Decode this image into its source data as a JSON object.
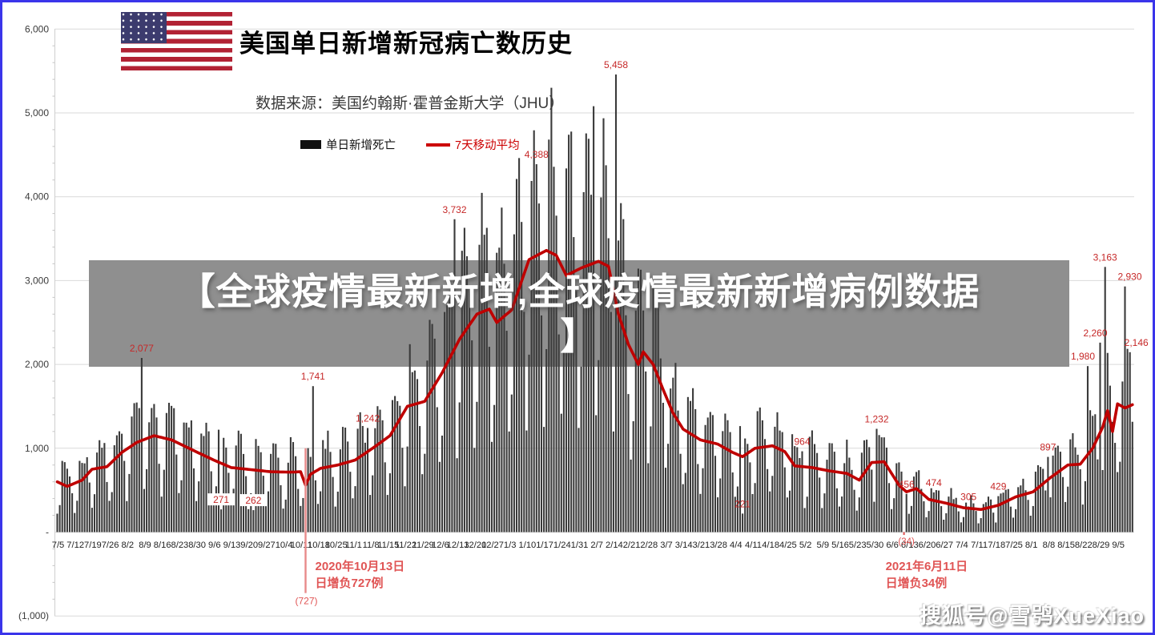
{
  "header": {
    "title": "美国单日新增新冠病亡数历史",
    "source": "数据来源：美国约翰斯·霍普金斯大学（JHU）"
  },
  "legend": {
    "bars_label": "单日新增死亡",
    "line_label": "7天移动平均",
    "bar_color": "#3a3a3a",
    "line_color": "#bf0000"
  },
  "overlay_banner": {
    "text_line1": "【全球疫情最新新增,全球疫情最新新增病例数据",
    "text_line2": "】",
    "bg_color": "#8f8f8f",
    "text_color": "#ffffff"
  },
  "watermark": {
    "text": "搜狐号@雪鸮XueXiao"
  },
  "chart_data": {
    "type": "bar",
    "title": "美国单日新增新冠病亡数历史",
    "subtitle": "数据来源：美国约翰斯·霍普金斯大学（JHU）",
    "series": [
      {
        "name": "单日新增死亡",
        "type": "bar",
        "color": "#3a3a3a"
      },
      {
        "name": "7天移动平均",
        "type": "line",
        "color": "#bf0000"
      }
    ],
    "x_start_label": "7/5",
    "x_end_label": "9/5",
    "days": 434,
    "grid": true,
    "legend_position": "top-center",
    "y_axis": {
      "min": -1000,
      "max": 6000,
      "step": 1000,
      "ticks": [
        "6,000",
        "5,000",
        "4,000",
        "3,000",
        "2,000",
        "1,000",
        "-",
        "(1,000)"
      ],
      "tick_values": [
        6000,
        5000,
        4000,
        3000,
        2000,
        1000,
        0,
        -1000
      ]
    },
    "x_tick_labels": [
      "7/5",
      "7/12",
      "7/19",
      "7/26",
      "8/2",
      "8/9",
      "8/16",
      "8/23",
      "8/30",
      "9/6",
      "9/13",
      "9/20",
      "9/27",
      "10/4",
      "10/11",
      "10/18",
      "10/25",
      "11/1",
      "11/8",
      "11/15",
      "11/22",
      "11/29",
      "12/6",
      "12/13",
      "12/20",
      "12/27",
      "1/3",
      "1/10",
      "1/17",
      "1/24",
      "1/31",
      "2/7",
      "2/14",
      "2/21",
      "2/28",
      "3/7",
      "3/14",
      "3/21",
      "3/28",
      "4/4",
      "4/11",
      "4/18",
      "4/25",
      "5/2",
      "5/9",
      "5/16",
      "5/23",
      "5/30",
      "6/6",
      "6/13",
      "6/20",
      "6/27",
      "7/4",
      "7/11",
      "7/18",
      "7/25",
      "8/1",
      "8/8",
      "8/15",
      "8/22",
      "8/29",
      "9/5"
    ],
    "moving_avg_anchors": [
      [
        0,
        600
      ],
      [
        4,
        545
      ],
      [
        10,
        620
      ],
      [
        14,
        750
      ],
      [
        20,
        780
      ],
      [
        26,
        950
      ],
      [
        32,
        1070
      ],
      [
        39,
        1150
      ],
      [
        46,
        1100
      ],
      [
        53,
        1000
      ],
      [
        63,
        860
      ],
      [
        70,
        770
      ],
      [
        78,
        745
      ],
      [
        86,
        720
      ],
      [
        94,
        715
      ],
      [
        98,
        720
      ],
      [
        100,
        560
      ],
      [
        102,
        690
      ],
      [
        106,
        760
      ],
      [
        113,
        800
      ],
      [
        120,
        860
      ],
      [
        127,
        1000
      ],
      [
        134,
        1150
      ],
      [
        141,
        1500
      ],
      [
        148,
        1560
      ],
      [
        155,
        1900
      ],
      [
        162,
        2300
      ],
      [
        169,
        2600
      ],
      [
        174,
        2660
      ],
      [
        177,
        2500
      ],
      [
        183,
        2650
      ],
      [
        190,
        3250
      ],
      [
        197,
        3360
      ],
      [
        201,
        3300
      ],
      [
        205,
        3060
      ],
      [
        211,
        3150
      ],
      [
        218,
        3230
      ],
      [
        222,
        3170
      ],
      [
        226,
        2600
      ],
      [
        230,
        2240
      ],
      [
        234,
        2000
      ],
      [
        236,
        2150
      ],
      [
        240,
        2000
      ],
      [
        244,
        1700
      ],
      [
        248,
        1420
      ],
      [
        252,
        1230
      ],
      [
        259,
        1100
      ],
      [
        266,
        1050
      ],
      [
        272,
        950
      ],
      [
        276,
        900
      ],
      [
        281,
        1000
      ],
      [
        288,
        1030
      ],
      [
        293,
        960
      ],
      [
        297,
        790
      ],
      [
        304,
        770
      ],
      [
        311,
        730
      ],
      [
        318,
        700
      ],
      [
        323,
        620
      ],
      [
        328,
        830
      ],
      [
        333,
        840
      ],
      [
        339,
        560
      ],
      [
        342,
        480
      ],
      [
        346,
        520
      ],
      [
        351,
        390
      ],
      [
        358,
        345
      ],
      [
        365,
        290
      ],
      [
        372,
        270
      ],
      [
        379,
        320
      ],
      [
        386,
        420
      ],
      [
        393,
        480
      ],
      [
        400,
        650
      ],
      [
        407,
        800
      ],
      [
        412,
        810
      ],
      [
        417,
        1000
      ],
      [
        421,
        1250
      ],
      [
        423,
        1450
      ],
      [
        425,
        1200
      ],
      [
        427,
        1530
      ],
      [
        430,
        1480
      ],
      [
        433,
        1520
      ]
    ],
    "bar_weekday_profile": [
      0.42,
      0.62,
      1.32,
      1.42,
      1.38,
      1.22,
      0.82
    ],
    "bar_noise": {
      "seed": 7,
      "amp": 0.13,
      "min_value": 35
    },
    "annotated_bars": [
      {
        "day": 34,
        "value": 2077,
        "label": "2,077"
      },
      {
        "day": 66,
        "value": 271,
        "label": "271",
        "boxed": true
      },
      {
        "day": 79,
        "value": 262,
        "label": "262",
        "boxed": true
      },
      {
        "day": 103,
        "value": 1741,
        "label": "1,741"
      },
      {
        "day": 125,
        "value": 1242,
        "label": "1,242"
      },
      {
        "day": 160,
        "value": 3732,
        "label": "3,732"
      },
      {
        "day": 193,
        "value": 4388,
        "label": "4,388"
      },
      {
        "day": 216,
        "value": 5080,
        "label": ""
      },
      {
        "day": 225,
        "value": 5458,
        "label": "5,458"
      },
      {
        "day": 276,
        "value": 221,
        "label": "221"
      },
      {
        "day": 300,
        "value": 964,
        "label": "964"
      },
      {
        "day": 330,
        "value": 1232,
        "label": "1,232"
      },
      {
        "day": 342,
        "value": 456,
        "label": "456"
      },
      {
        "day": 353,
        "value": 474,
        "label": "474"
      },
      {
        "day": 367,
        "value": 305,
        "label": "305"
      },
      {
        "day": 379,
        "value": 429,
        "label": "429"
      },
      {
        "day": 399,
        "value": 897,
        "label": "897"
      },
      {
        "day": 415,
        "value": 1980,
        "label": "1,980",
        "dx": -6
      },
      {
        "day": 420,
        "value": 2260,
        "label": "2,260",
        "dx": -6
      },
      {
        "day": 422,
        "value": 3163,
        "label": "3,163"
      },
      {
        "day": 430,
        "value": 2930,
        "label": "2,930",
        "dx": 6
      },
      {
        "day": 432,
        "value": 2146,
        "label": "2,146",
        "dx": 8
      }
    ],
    "negative_events": [
      {
        "day": 100,
        "value": -727,
        "label": "(727)",
        "note_line1": "2020年10月13日",
        "note_line2": "日增负727例",
        "line_top_value": 1000,
        "note_dx": 12
      },
      {
        "day": 341,
        "value": -34,
        "label": "(34)",
        "note_line1": "2021年6月11日",
        "note_line2": "日增负34例",
        "note_dx": -23
      }
    ],
    "annotation_color": "#c62828",
    "note_color": "#e05555"
  }
}
